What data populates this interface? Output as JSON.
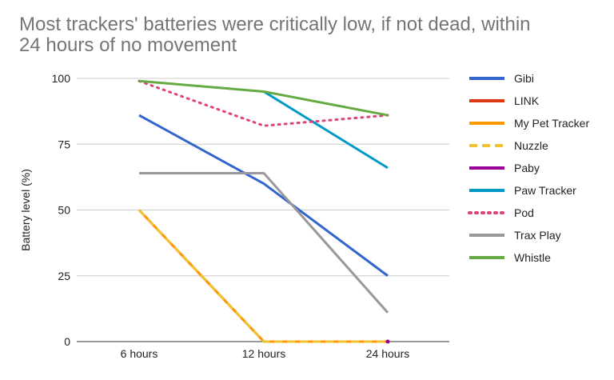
{
  "chart_data": {
    "type": "line",
    "title_lines": [
      "Most trackers' batteries were critically low, if not dead, within",
      "24 hours of no movement"
    ],
    "xlabel": "",
    "ylabel": "Battery level (%)",
    "categories": [
      "6 hours",
      "12 hours",
      "24 hours"
    ],
    "ylim": [
      0,
      100
    ],
    "yticks": [
      0,
      25,
      50,
      75,
      100
    ],
    "grid": true,
    "legend_position": "right",
    "series": [
      {
        "name": "Gibi",
        "values": [
          86,
          60,
          25
        ],
        "color": "#3366cc",
        "dash": "solid"
      },
      {
        "name": "LINK",
        "values": [
          50,
          0,
          0
        ],
        "color": "#dc3912",
        "dash": "solid"
      },
      {
        "name": "My Pet Tracker",
        "values": [
          50,
          0,
          0
        ],
        "color": "#ff9900",
        "dash": "solid"
      },
      {
        "name": "Nuzzle",
        "values": [
          50,
          0,
          0
        ],
        "color": "#f1c232",
        "dash": "dashed"
      },
      {
        "name": "Paby",
        "values": [
          null,
          null,
          0
        ],
        "color": "#990099",
        "dash": "solid"
      },
      {
        "name": "Paw Tracker",
        "values": [
          null,
          95,
          66
        ],
        "color": "#0099c6",
        "dash": "solid"
      },
      {
        "name": "Pod",
        "values": [
          99,
          82,
          86
        ],
        "color": "#dd4477",
        "dash": "dotted"
      },
      {
        "name": "Trax Play",
        "values": [
          64,
          64,
          11
        ],
        "color": "#999999",
        "dash": "solid"
      },
      {
        "name": "Whistle",
        "values": [
          99,
          95,
          86
        ],
        "color": "#66aa44",
        "dash": "solid"
      }
    ]
  }
}
